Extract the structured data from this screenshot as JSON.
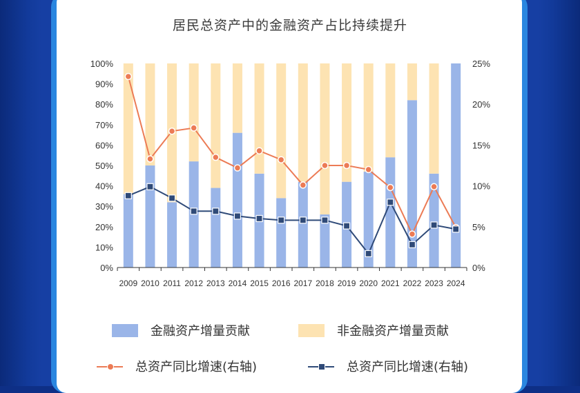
{
  "chart_data": {
    "type": "bar",
    "title": "居民总资产中的金融资产占比持续提升",
    "categories": [
      "2009",
      "2010",
      "2011",
      "2012",
      "2013",
      "2014",
      "2015",
      "2016",
      "2017",
      "2018",
      "2019",
      "2020",
      "2021",
      "2022",
      "2023",
      "2024"
    ],
    "stacked": true,
    "series": [
      {
        "name": "金融资产增量贡献",
        "type": "bar",
        "axis": "left",
        "color": "#9ab5e8",
        "values": [
          36,
          50,
          32,
          52,
          39,
          66,
          46,
          34,
          42,
          26,
          42,
          47,
          54,
          82,
          46,
          100
        ]
      },
      {
        "name": "非金融资产增量贡献",
        "type": "bar",
        "axis": "left",
        "color": "#fde3b2",
        "values": [
          64,
          50,
          68,
          48,
          61,
          34,
          54,
          66,
          58,
          74,
          58,
          53,
          46,
          18,
          54,
          0
        ]
      },
      {
        "name": "总资产同比增速(右轴)",
        "type": "line",
        "axis": "right",
        "color": "#ec7b55",
        "marker": "circle",
        "values": [
          23.4,
          13.3,
          16.7,
          17.1,
          13.5,
          12.2,
          14.3,
          13.2,
          10.1,
          12.5,
          12.5,
          12.0,
          9.8,
          4.1,
          9.9,
          4.9
        ]
      },
      {
        "name": "总资产同比增速(右轴)",
        "type": "line",
        "axis": "right",
        "color": "#2f4a78",
        "marker": "square",
        "values": [
          8.8,
          9.9,
          8.5,
          6.9,
          6.9,
          6.3,
          6.0,
          5.8,
          5.8,
          5.8,
          5.1,
          1.7,
          8.0,
          2.8,
          5.2,
          4.7
        ]
      }
    ],
    "y_left": {
      "ylim": [
        0,
        100
      ],
      "ticks": [
        "0%",
        "10%",
        "20%",
        "30%",
        "40%",
        "50%",
        "60%",
        "70%",
        "80%",
        "90%",
        "100%"
      ]
    },
    "y_right": {
      "ylim": [
        0,
        25
      ],
      "ticks": [
        "0%",
        "5%",
        "10%",
        "15%",
        "20%",
        "25%"
      ]
    },
    "grid": false,
    "legend_position": "bottom"
  }
}
